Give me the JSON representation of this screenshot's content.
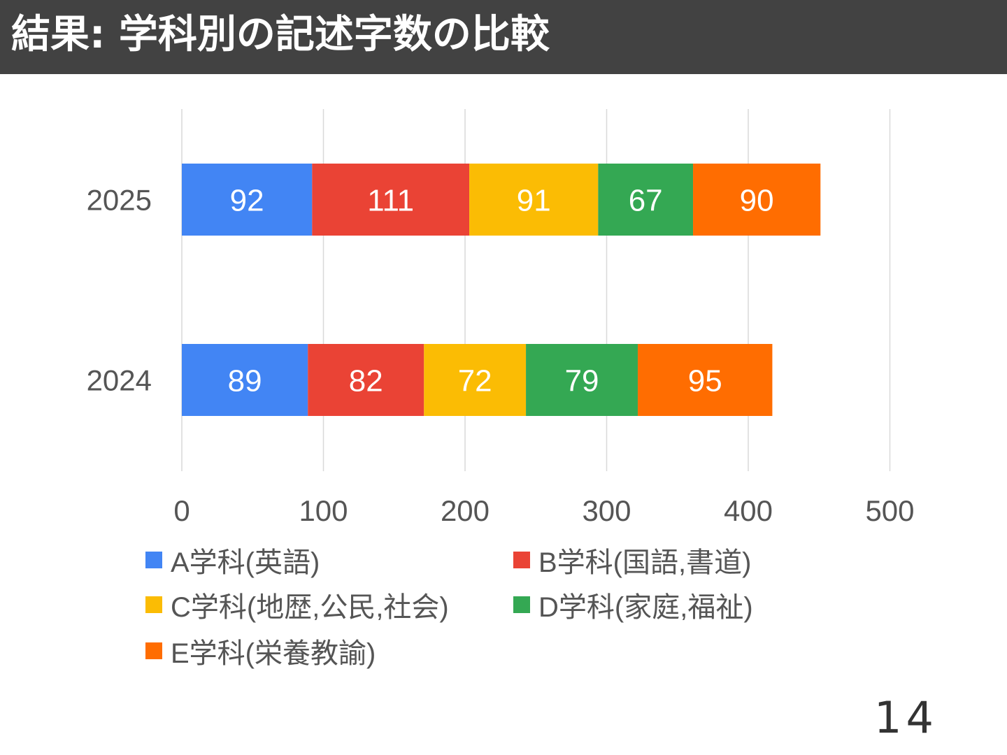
{
  "header": {
    "title": "結果: 学科別の記述字数の比較"
  },
  "chart_data": {
    "type": "bar",
    "orientation": "horizontal",
    "stacked": true,
    "title": "",
    "xlabel": "",
    "ylabel": "",
    "categories": [
      "2025",
      "2024"
    ],
    "xlim": [
      0,
      500
    ],
    "x_ticks": [
      "0",
      "100",
      "200",
      "300",
      "400",
      "500"
    ],
    "grid": true,
    "legend_position": "bottom",
    "series": [
      {
        "name": "A学科(英語)",
        "color": "#4285F4",
        "values": [
          92,
          89
        ]
      },
      {
        "name": "B学科(国語,書道)",
        "color": "#EA4335",
        "values": [
          111,
          82
        ]
      },
      {
        "name": "C学科(地歴,公民,社会)",
        "color": "#FBBC04",
        "values": [
          91,
          72
        ]
      },
      {
        "name": "D学科(家庭,福祉)",
        "color": "#34A853",
        "values": [
          67,
          79
        ]
      },
      {
        "name": "E学科(栄養教諭)",
        "color": "#FF6D01",
        "values": [
          90,
          95
        ]
      }
    ]
  },
  "footer": {
    "page_number": "14"
  }
}
